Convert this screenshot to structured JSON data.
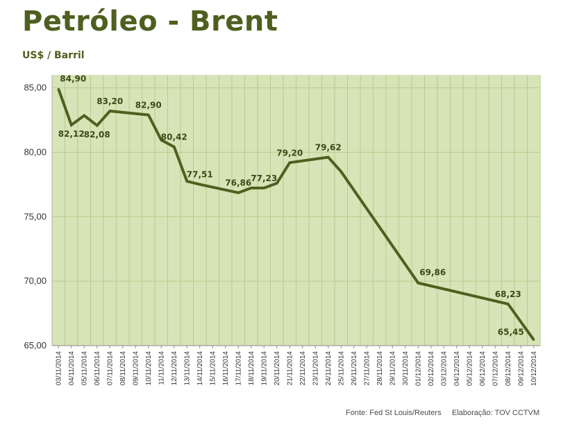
{
  "header": {
    "title": "Petróleo - Brent",
    "subtitle": "US$ / Barril"
  },
  "footer": {
    "source": "Fonte: Fed St Louis/Reuters",
    "credit": "Elaboração: TOV CCTVM"
  },
  "colors": {
    "title": "#4f5f1f",
    "plot_background": "#d6e4b8",
    "grid": "#b7cd8a",
    "line": "#4f5f1f"
  },
  "chart_data": {
    "type": "line",
    "title": "Petróleo - Brent",
    "subtitle": "US$ / Barril",
    "xlabel": "",
    "ylabel": "",
    "ylim": [
      65,
      86
    ],
    "yticks": [
      "65,00",
      "70,00",
      "75,00",
      "80,00",
      "85,00"
    ],
    "ytick_values": [
      65,
      70,
      75,
      80,
      85
    ],
    "grid": true,
    "legend": "none",
    "categories": [
      "03/11/2014",
      "04/11/2014",
      "05/11/2014",
      "06/11/2014",
      "07/11/2014",
      "08/11/2014",
      "09/11/2014",
      "10/11/2014",
      "11/11/2014",
      "12/11/2014",
      "13/11/2014",
      "14/11/2014",
      "15/11/2014",
      "16/11/2014",
      "17/11/2014",
      "18/11/2014",
      "19/11/2014",
      "20/11/2014",
      "21/11/2014",
      "22/11/2014",
      "23/11/2014",
      "24/11/2014",
      "25/11/2014",
      "26/11/2014",
      "27/11/2014",
      "28/11/2014",
      "29/11/2014",
      "30/11/2014",
      "01/12/2014",
      "02/12/2014",
      "03/12/2014",
      "04/12/2014",
      "05/12/2014",
      "06/12/2014",
      "07/12/2014",
      "08/12/2014",
      "09/12/2014",
      "10/12/2014"
    ],
    "series": [
      {
        "points": [
          {
            "x": "03/11/2014",
            "y": 84.9
          },
          {
            "x": "04/11/2014",
            "y": 82.12
          },
          {
            "x": "05/11/2014",
            "y": 82.85
          },
          {
            "x": "06/11/2014",
            "y": 82.08
          },
          {
            "x": "07/11/2014",
            "y": 83.2
          },
          {
            "x": "10/11/2014",
            "y": 82.9
          },
          {
            "x": "11/11/2014",
            "y": 80.95
          },
          {
            "x": "12/11/2014",
            "y": 80.42
          },
          {
            "x": "13/11/2014",
            "y": 77.75
          },
          {
            "x": "14/11/2014",
            "y": 77.51
          },
          {
            "x": "17/11/2014",
            "y": 76.86
          },
          {
            "x": "18/11/2014",
            "y": 77.23
          },
          {
            "x": "19/11/2014",
            "y": 77.23
          },
          {
            "x": "20/11/2014",
            "y": 77.6
          },
          {
            "x": "21/11/2014",
            "y": 79.2
          },
          {
            "x": "24/11/2014",
            "y": 79.62
          },
          {
            "x": "25/11/2014",
            "y": 78.5
          },
          {
            "x": "01/12/2014",
            "y": 69.86
          },
          {
            "x": "08/12/2014",
            "y": 68.23
          },
          {
            "x": "10/12/2014",
            "y": 65.45
          }
        ]
      }
    ],
    "data_labels": [
      {
        "x": "03/11/2014",
        "y": 84.9,
        "text": "84,90",
        "position": "above-right"
      },
      {
        "x": "04/11/2014",
        "y": 82.12,
        "text": "82,12",
        "position": "below"
      },
      {
        "x": "06/11/2014",
        "y": 82.08,
        "text": "82,08",
        "position": "below"
      },
      {
        "x": "07/11/2014",
        "y": 83.2,
        "text": "83,20",
        "position": "above"
      },
      {
        "x": "10/11/2014",
        "y": 82.9,
        "text": "82,90",
        "position": "above"
      },
      {
        "x": "12/11/2014",
        "y": 80.42,
        "text": "80,42",
        "position": "above"
      },
      {
        "x": "14/11/2014",
        "y": 77.51,
        "text": "77,51",
        "position": "above"
      },
      {
        "x": "17/11/2014",
        "y": 76.86,
        "text": "76,86",
        "position": "above"
      },
      {
        "x": "19/11/2014",
        "y": 77.23,
        "text": "77,23",
        "position": "above"
      },
      {
        "x": "21/11/2014",
        "y": 79.2,
        "text": "79,20",
        "position": "above"
      },
      {
        "x": "24/11/2014",
        "y": 79.62,
        "text": "79,62",
        "position": "above"
      },
      {
        "x": "01/12/2014",
        "y": 69.86,
        "text": "69,86",
        "position": "above-right"
      },
      {
        "x": "08/12/2014",
        "y": 68.23,
        "text": "68,23",
        "position": "above"
      },
      {
        "x": "10/12/2014",
        "y": 65.45,
        "text": "65,45",
        "position": "left"
      }
    ]
  }
}
